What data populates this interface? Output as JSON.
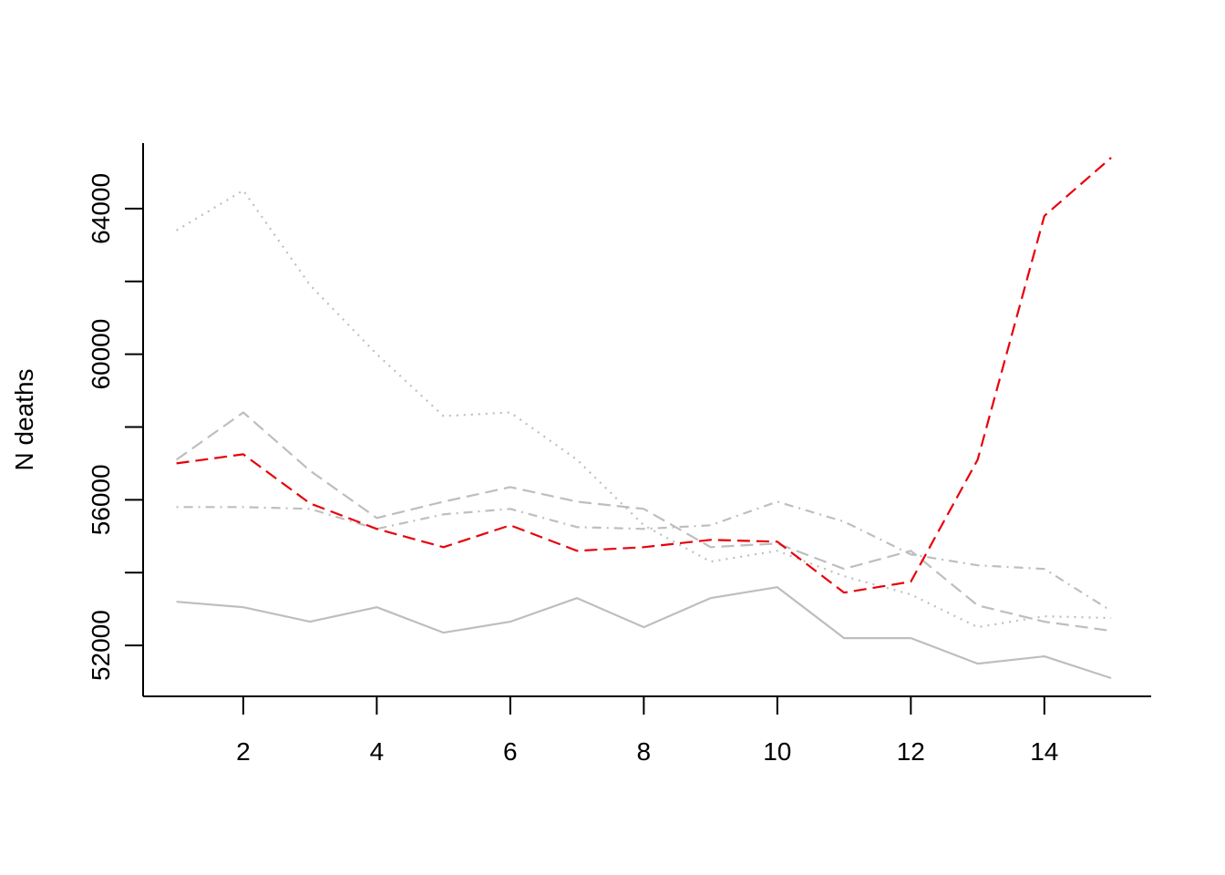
{
  "chart_data": {
    "type": "line",
    "title": "",
    "xlabel": "",
    "ylabel": "N deaths",
    "xlim": [
      0.5,
      15.6
    ],
    "ylim": [
      50600,
      65800
    ],
    "grid": false,
    "legend": "none",
    "x": [
      1,
      2,
      3,
      4,
      5,
      6,
      7,
      8,
      9,
      10,
      11,
      12,
      13,
      14,
      15
    ],
    "x_ticks": [
      2,
      4,
      6,
      8,
      10,
      12,
      14
    ],
    "y_ticks": [
      52000,
      56000,
      60000,
      64000
    ],
    "series": [
      {
        "color": "#bebebe",
        "dash": "solid",
        "values": [
          53200,
          53050,
          52650,
          53050,
          52350,
          52650,
          53300,
          52500,
          53300,
          53600,
          52200,
          52200,
          51500,
          51700,
          51100
        ]
      },
      {
        "color": "#bebebe",
        "dash": "dotted",
        "values": [
          63400,
          64500,
          61900,
          60000,
          58300,
          58400,
          57100,
          55300,
          54300,
          54600,
          53900,
          53400,
          52500,
          52800,
          52750
        ]
      },
      {
        "color": "#bebebe",
        "dash": "dashed",
        "values": [
          57100,
          58400,
          56800,
          55500,
          55950,
          56350,
          55950,
          55750,
          54700,
          54800,
          54100,
          54600,
          53100,
          52650,
          52400
        ]
      },
      {
        "color": "#bebebe",
        "dash": "dotdash",
        "values": [
          55800,
          55800,
          55750,
          55200,
          55600,
          55750,
          55250,
          55200,
          55300,
          55950,
          55400,
          54500,
          54200,
          54100,
          52950
        ]
      },
      {
        "color": "#e8000b",
        "dash": "dashed",
        "values": [
          57000,
          57250,
          55900,
          55200,
          54700,
          55300,
          54600,
          54700,
          54900,
          54850,
          53450,
          53750,
          57100,
          63800,
          65400
        ]
      }
    ]
  }
}
